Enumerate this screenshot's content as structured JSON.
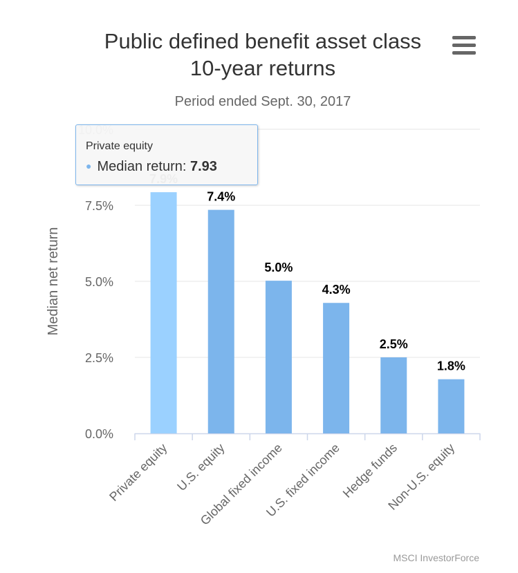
{
  "chart_data": {
    "type": "bar",
    "title": "Public defined benefit asset class 10-year returns",
    "title_lines": [
      "Public defined benefit asset class",
      "10-year returns"
    ],
    "subtitle": "Period ended Sept. 30, 2017",
    "xlabel": "",
    "ylabel": "Median net return",
    "ylim": [
      0,
      10
    ],
    "yticks": [
      0,
      2.5,
      5,
      7.5,
      10
    ],
    "ytick_labels": [
      "0.0%",
      "2.5%",
      "5.0%",
      "7.5%",
      "10.0%"
    ],
    "categories": [
      "Private equity",
      "U.S. equity",
      "Global fixed income",
      "U.S. fixed income",
      "Hedge funds",
      "Non-U.S. equity"
    ],
    "series": [
      {
        "name": "Median return",
        "values": [
          7.93,
          7.35,
          5.02,
          4.29,
          2.5,
          1.78
        ],
        "data_labels": [
          "7.9%",
          "7.4%",
          "5.0%",
          "4.3%",
          "2.5%",
          "1.8%"
        ]
      }
    ],
    "grid": true,
    "legend": "none",
    "credits": "MSCI InvestorForce",
    "colors": {
      "bar": "#7cb5ec",
      "bar_hover": "#9bd1ff",
      "grid": "#e6e6e6",
      "axis": "#ccd6eb",
      "tick_text": "#666666"
    },
    "tooltip": {
      "category": "Private equity",
      "series_label": "Median return:",
      "value": "7.93"
    }
  }
}
